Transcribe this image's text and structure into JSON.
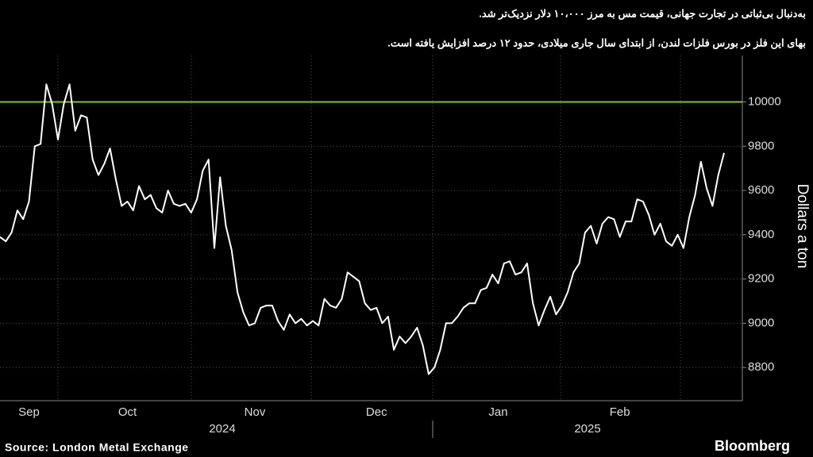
{
  "chart_data": {
    "type": "line",
    "title": "به‌دنبال بی‌ثباتی در تجارت جهانی، قیمت مس به مرز ۱۰،۰۰۰ دلار نزدیک‌تر شد.",
    "subtitle": "بهای این فلز در بورس فلزات لندن، از ابتدای سال جاری میلادی، حدود ۱۲ درصد افزایش یافته است.",
    "y_label": "Dollars a ton",
    "source": "Source: London Metal Exchange",
    "brand": "Bloomberg",
    "year_labels": [
      "2024",
      "2025"
    ],
    "categories": [
      null,
      null,
      null,
      null,
      null,
      "Sep",
      null,
      null,
      null,
      null,
      null,
      null,
      null,
      null,
      null,
      null,
      null,
      null,
      null,
      null,
      null,
      null,
      "Oct",
      null,
      null,
      null,
      null,
      null,
      null,
      null,
      null,
      null,
      null,
      null,
      null,
      null,
      null,
      null,
      null,
      null,
      null,
      null,
      null,
      null,
      "Nov",
      null,
      null,
      null,
      null,
      null,
      null,
      null,
      null,
      null,
      null,
      null,
      null,
      null,
      null,
      null,
      null,
      null,
      null,
      null,
      null,
      "Dec",
      null,
      null,
      null,
      null,
      null,
      null,
      null,
      null,
      null,
      null,
      null,
      null,
      null,
      null,
      null,
      null,
      null,
      null,
      null,
      null,
      "Jan",
      null,
      null,
      null,
      null,
      null,
      null,
      null,
      null,
      null,
      null,
      null,
      null,
      null,
      null,
      null,
      null,
      null,
      null,
      null,
      null,
      "Feb",
      null,
      null,
      null,
      null,
      null,
      null,
      null,
      null,
      null,
      null,
      null,
      null,
      null,
      null,
      null,
      null,
      null,
      null
    ],
    "values": [
      9390,
      9370,
      9410,
      9510,
      9470,
      9550,
      9800,
      9810,
      10080,
      9990,
      9830,
      9990,
      10080,
      9870,
      9940,
      9930,
      9740,
      9670,
      9720,
      9790,
      9650,
      9530,
      9550,
      9510,
      9620,
      9560,
      9580,
      9520,
      9500,
      9600,
      9540,
      9530,
      9540,
      9500,
      9560,
      9690,
      9740,
      9340,
      9660,
      9440,
      9330,
      9140,
      9050,
      8990,
      9000,
      9070,
      9080,
      9080,
      9010,
      8970,
      9040,
      9000,
      9020,
      8990,
      9010,
      8990,
      9110,
      9080,
      9070,
      9110,
      9230,
      9210,
      9190,
      9090,
      9060,
      9070,
      9000,
      9030,
      8880,
      8940,
      8910,
      8940,
      8980,
      8900,
      8770,
      8800,
      8880,
      9000,
      9000,
      9030,
      9070,
      9090,
      9090,
      9150,
      9160,
      9220,
      9180,
      9270,
      9280,
      9220,
      9230,
      9270,
      9090,
      8990,
      9060,
      9120,
      9040,
      9080,
      9140,
      9230,
      9270,
      9410,
      9440,
      9360,
      9450,
      9480,
      9470,
      9390,
      9460,
      9460,
      9560,
      9550,
      9490,
      9400,
      9450,
      9370,
      9350,
      9400,
      9340,
      9480,
      9580,
      9730,
      9610,
      9530,
      9670,
      9770
    ],
    "color": "#ffffff",
    "threshold": 10000,
    "threshold_color": "#7dc42b",
    "ylim": [
      8650,
      10210
    ],
    "yticks": [
      8800,
      9000,
      9200,
      9400,
      9600,
      9800,
      10000
    ],
    "grid": true
  }
}
